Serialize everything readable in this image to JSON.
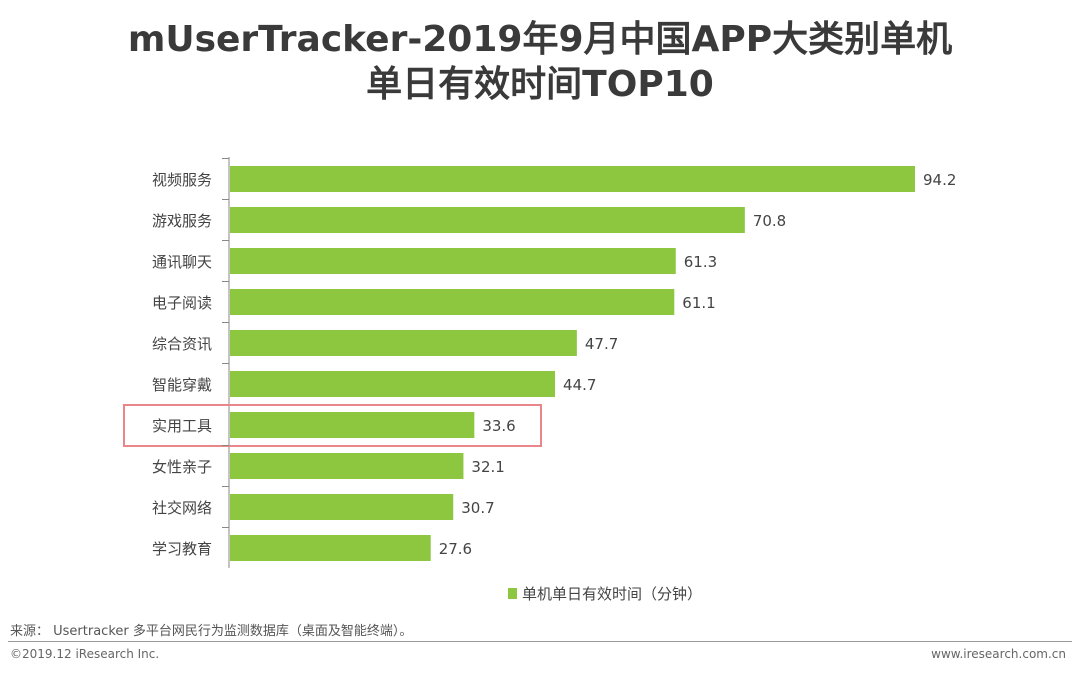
{
  "chart_data": {
    "type": "bar",
    "orientation": "horizontal",
    "title": "mUserTracker-2019年9月中国APP大类别单机单日有效时间TOP10",
    "title_lines": [
      "mUserTracker-2019年9月中国APP大类别单机",
      "单日有效时间TOP10"
    ],
    "categories": [
      "视频服务",
      "游戏服务",
      "通讯聊天",
      "电子阅读",
      "综合资讯",
      "智能穿戴",
      "实用工具",
      "女性亲子",
      "社交网络",
      "学习教育"
    ],
    "series": [
      {
        "name": "单机单日有效时间（分钟）",
        "values": [
          94.2,
          70.8,
          61.3,
          61.1,
          47.7,
          44.7,
          33.6,
          32.1,
          30.7,
          27.6
        ],
        "color": "#8dc63f"
      }
    ],
    "highlighted_category": "实用工具",
    "highlight_color": "#e8868a",
    "legend_position": "bottom",
    "grid": false,
    "xlim": [
      0,
      94.2
    ]
  },
  "footer": {
    "source": "来源： Usertracker 多平台网民行为监测数据库（桌面及智能终端）。",
    "copyright": "©2019.12 iResearch Inc.",
    "website": "www.iresearch.com.cn"
  }
}
